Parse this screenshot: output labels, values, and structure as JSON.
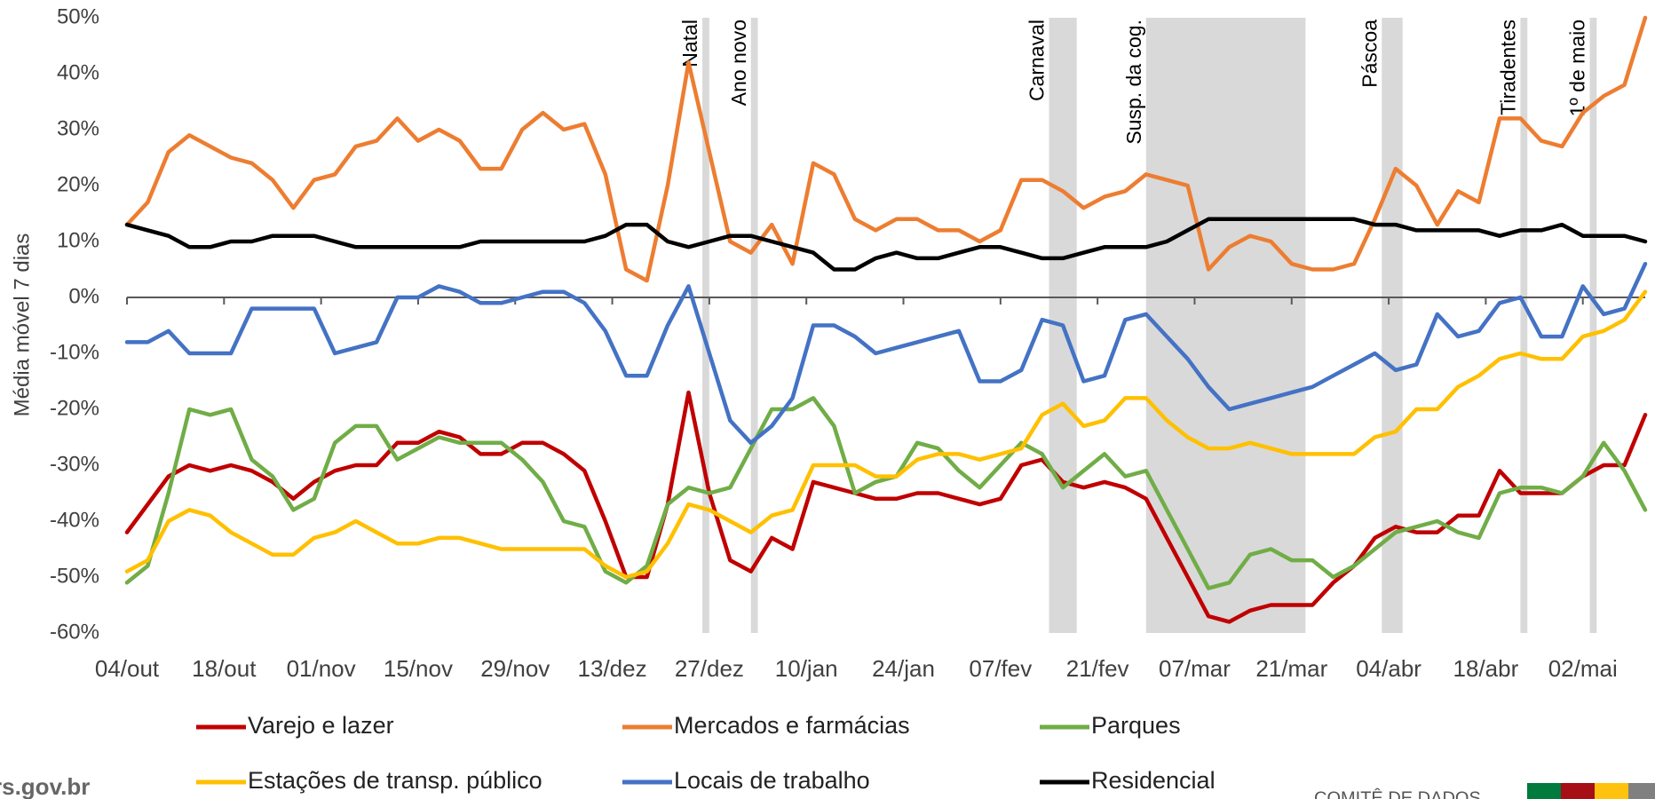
{
  "chart_data": {
    "type": "line",
    "y_label": "Média móvel 7 dias",
    "x": [
      "04/out",
      "07/out",
      "10/out",
      "13/out",
      "16/out",
      "19/out",
      "22/out",
      "25/out",
      "28/out",
      "31/out",
      "03/nov",
      "06/nov",
      "09/nov",
      "12/nov",
      "15/nov",
      "18/nov",
      "21/nov",
      "24/nov",
      "27/nov",
      "30/nov",
      "03/dez",
      "06/dez",
      "09/dez",
      "12/dez",
      "15/dez",
      "18/dez",
      "21/dez",
      "24/dez",
      "27/dez",
      "30/dez",
      "02/jan",
      "05/jan",
      "08/jan",
      "11/jan",
      "14/jan",
      "17/jan",
      "20/jan",
      "23/jan",
      "26/jan",
      "29/jan",
      "01/fev",
      "04/fev",
      "07/fev",
      "10/fev",
      "13/fev",
      "16/fev",
      "19/fev",
      "22/fev",
      "25/fev",
      "28/fev",
      "03/mar",
      "06/mar",
      "09/mar",
      "12/mar",
      "15/mar",
      "18/mar",
      "21/mar",
      "24/mar",
      "27/mar",
      "30/mar",
      "02/abr",
      "05/abr",
      "08/abr",
      "11/abr",
      "14/abr",
      "17/abr",
      "20/abr",
      "23/abr",
      "26/abr",
      "29/abr",
      "02/mai",
      "05/mai",
      "08/mai",
      "11/mai"
    ],
    "xlim": [
      "04/out",
      "11/mai"
    ],
    "xticks": [
      "04/out",
      "18/out",
      "01/nov",
      "15/nov",
      "29/nov",
      "13/dez",
      "27/dez",
      "10/jan",
      "24/jan",
      "07/fev",
      "21/fev",
      "07/mar",
      "21/mar",
      "04/abr",
      "18/abr",
      "02/mai"
    ],
    "ylim": [
      -60,
      50
    ],
    "yticks": [
      {
        "value": 50,
        "label": "50%"
      },
      {
        "value": 40,
        "label": "40%"
      },
      {
        "value": 30,
        "label": "30%"
      },
      {
        "value": 20,
        "label": "20%"
      },
      {
        "value": 10,
        "label": "10%"
      },
      {
        "value": 0,
        "label": "0%"
      },
      {
        "value": -10,
        "label": "-10%"
      },
      {
        "value": -20,
        "label": "-20%"
      },
      {
        "value": -30,
        "label": "-30%"
      },
      {
        "value": -40,
        "label": "-40%"
      },
      {
        "value": -50,
        "label": "-50%"
      },
      {
        "value": -60,
        "label": "-60%"
      }
    ],
    "bands": [
      {
        "label": "Natal",
        "start": "26/dez",
        "end": "27/dez"
      },
      {
        "label": "Ano novo",
        "start": "02/jan",
        "end": "03/jan"
      },
      {
        "label": "Carnaval",
        "start": "14/fev",
        "end": "18/fev"
      },
      {
        "label": "Susp. da cog.",
        "start": "28/fev",
        "end": "23/mar"
      },
      {
        "label": "Páscoa",
        "start": "03/abr",
        "end": "06/abr"
      },
      {
        "label": "Tiradentes",
        "start": "23/abr",
        "end": "24/abr"
      },
      {
        "label": "1º de maio",
        "start": "03/mai",
        "end": "04/mai"
      }
    ],
    "band_color": "#d9d9d9",
    "series": [
      {
        "name": "Varejo e lazer",
        "color": "#c00000",
        "values": [
          -42,
          -37,
          -32,
          -30,
          -31,
          -30,
          -31,
          -33,
          -36,
          -33,
          -31,
          -30,
          -30,
          -26,
          -26,
          -24,
          -25,
          -28,
          -28,
          -26,
          -26,
          -28,
          -31,
          -40,
          -50,
          -50,
          -37,
          -17,
          -35,
          -47,
          -49,
          -43,
          -45,
          -33,
          -34,
          -35,
          -36,
          -36,
          -35,
          -35,
          -36,
          -37,
          -36,
          -30,
          -29,
          -33,
          -34,
          -33,
          -34,
          -36,
          -43,
          -50,
          -57,
          -58,
          -56,
          -55,
          -55,
          -55,
          -51,
          -48,
          -43,
          -41,
          -42,
          -42,
          -39,
          -39,
          -31,
          -35,
          -35,
          -35,
          -32,
          -30,
          -30,
          -21
        ]
      },
      {
        "name": "Mercados e farmácias",
        "color": "#ed7d31",
        "values": [
          13,
          17,
          26,
          29,
          27,
          25,
          24,
          21,
          16,
          21,
          22,
          27,
          28,
          32,
          28,
          30,
          28,
          23,
          23,
          30,
          33,
          30,
          31,
          22,
          5,
          3,
          20,
          42,
          26,
          10,
          8,
          13,
          6,
          24,
          22,
          14,
          12,
          14,
          14,
          12,
          12,
          10,
          12,
          21,
          21,
          19,
          16,
          18,
          19,
          22,
          21,
          20,
          5,
          9,
          11,
          10,
          6,
          5,
          5,
          6,
          14,
          23,
          20,
          13,
          19,
          17,
          32,
          32,
          28,
          27,
          33,
          36,
          38,
          50
        ]
      },
      {
        "name": "Parques",
        "color": "#70ad47",
        "values": [
          -51,
          -48,
          -35,
          -20,
          -21,
          -20,
          -29,
          -32,
          -38,
          -36,
          -26,
          -23,
          -23,
          -29,
          -27,
          -25,
          -26,
          -26,
          -26,
          -29,
          -33,
          -40,
          -41,
          -49,
          -51,
          -48,
          -37,
          -34,
          -35,
          -34,
          -27,
          -20,
          -20,
          -18,
          -23,
          -35,
          -33,
          -32,
          -26,
          -27,
          -31,
          -34,
          -30,
          -26,
          -28,
          -34,
          -31,
          -28,
          -32,
          -31,
          -38,
          -45,
          -52,
          -51,
          -46,
          -45,
          -47,
          -47,
          -50,
          -48,
          -45,
          -42,
          -41,
          -40,
          -42,
          -43,
          -35,
          -34,
          -34,
          -35,
          -32,
          -26,
          -31,
          -38
        ]
      },
      {
        "name": "Estações de transp. público",
        "color": "#ffc000",
        "values": [
          -49,
          -47,
          -40,
          -38,
          -39,
          -42,
          -44,
          -46,
          -46,
          -43,
          -42,
          -40,
          -42,
          -44,
          -44,
          -43,
          -43,
          -44,
          -45,
          -45,
          -45,
          -45,
          -45,
          -48,
          -50,
          -49,
          -44,
          -37,
          -38,
          -40,
          -42,
          -39,
          -38,
          -30,
          -30,
          -30,
          -32,
          -32,
          -29,
          -28,
          -28,
          -29,
          -28,
          -27,
          -21,
          -19,
          -23,
          -22,
          -18,
          -18,
          -22,
          -25,
          -27,
          -27,
          -26,
          -27,
          -28,
          -28,
          -28,
          -28,
          -25,
          -24,
          -20,
          -20,
          -16,
          -14,
          -11,
          -10,
          -11,
          -11,
          -7,
          -6,
          -4,
          1
        ]
      },
      {
        "name": "Locais de trabalho",
        "color": "#4472c4",
        "values": [
          -8,
          -8,
          -6,
          -10,
          -10,
          -10,
          -2,
          -2,
          -2,
          -2,
          -10,
          -9,
          -8,
          0,
          0,
          2,
          1,
          -1,
          -1,
          0,
          1,
          1,
          -1,
          -6,
          -14,
          -14,
          -5,
          2,
          -10,
          -22,
          -26,
          -23,
          -18,
          -5,
          -5,
          -7,
          -10,
          -9,
          -8,
          -7,
          -6,
          -15,
          -15,
          -13,
          -4,
          -5,
          -15,
          -14,
          -4,
          -3,
          -7,
          -11,
          -16,
          -20,
          -19,
          -18,
          -17,
          -16,
          -14,
          -12,
          -10,
          -13,
          -12,
          -3,
          -7,
          -6,
          -1,
          0,
          -7,
          -7,
          2,
          -3,
          -2,
          6
        ]
      },
      {
        "name": "Residencial",
        "color": "#000000",
        "values": [
          13,
          12,
          11,
          9,
          9,
          10,
          10,
          11,
          11,
          11,
          10,
          9,
          9,
          9,
          9,
          9,
          9,
          10,
          10,
          10,
          10,
          10,
          10,
          11,
          13,
          13,
          10,
          9,
          10,
          11,
          11,
          10,
          9,
          8,
          5,
          5,
          7,
          8,
          7,
          7,
          8,
          9,
          9,
          8,
          7,
          7,
          8,
          9,
          9,
          9,
          10,
          12,
          14,
          14,
          14,
          14,
          14,
          14,
          14,
          14,
          13,
          13,
          12,
          12,
          12,
          12,
          11,
          12,
          12,
          13,
          11,
          11,
          11,
          10
        ]
      }
    ]
  },
  "footer": {
    "site": "rs.gov.br",
    "org": "COMITÊ DE DADOS",
    "flag_colors": [
      "#007a3d",
      "#a50f15",
      "#ffc20e",
      "#808080"
    ]
  }
}
